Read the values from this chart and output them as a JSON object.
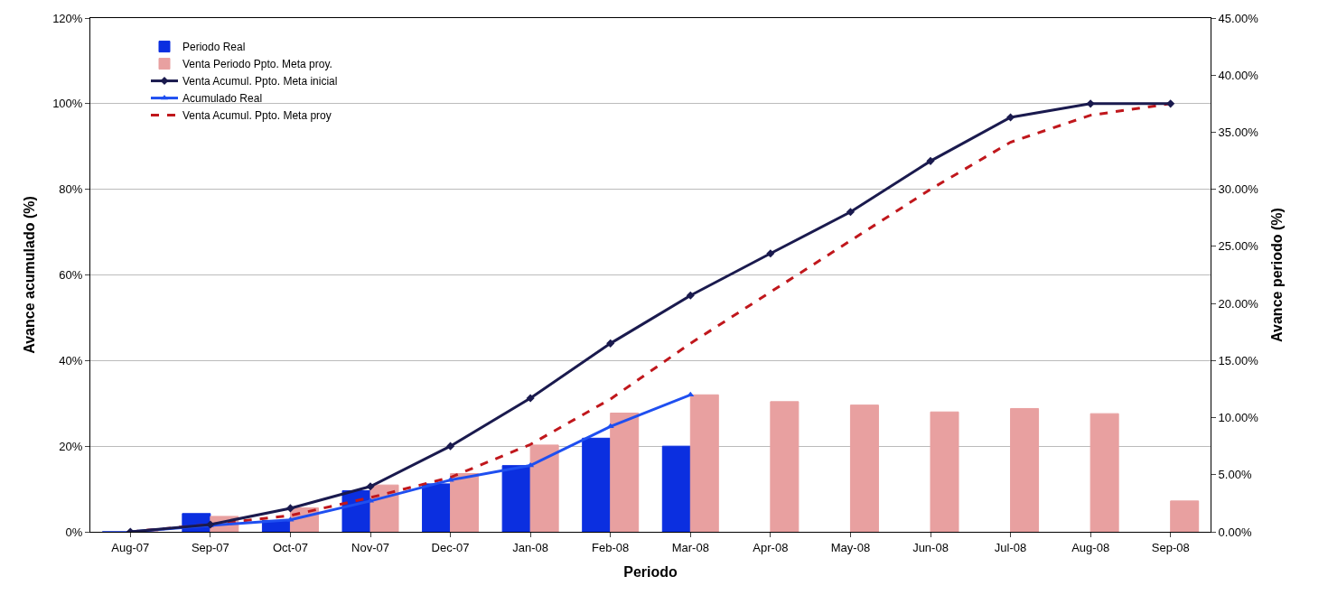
{
  "chart_data": {
    "type": "bar",
    "xlabel": "Periodo",
    "ylabel": "Avance acumulado (%)",
    "y2label": "Avance periodo (%)",
    "categories": [
      "Aug-07",
      "Sep-07",
      "Oct-07",
      "Nov-07",
      "Dec-07",
      "Jan-08",
      "Feb-08",
      "Mar-08",
      "Apr-08",
      "May-08",
      "Jun-08",
      "Jul-08",
      "Aug-08",
      "Sep-08"
    ],
    "series": [
      {
        "name": "Periodo Real",
        "type": "bar",
        "axis": "y2",
        "color": "#0b2fe0",
        "values": [
          0,
          1.6,
          1.0,
          3.6,
          4.2,
          5.8,
          8.2,
          7.5,
          null,
          null,
          null,
          null,
          null,
          null
        ]
      },
      {
        "name": "Venta Periodo Ppto. Meta proy.",
        "type": "bar",
        "axis": "y2",
        "color": "#e8a0a0",
        "values": [
          0,
          1.35,
          2.1,
          4.1,
          5.1,
          7.6,
          10.4,
          12.0,
          11.4,
          11.1,
          10.5,
          10.8,
          10.35,
          2.7
        ]
      },
      {
        "name": "Venta Acumul. Ppto. Meta inicial",
        "type": "line",
        "color": "#1a1a4e",
        "marker": "diamond",
        "line_style": "solid",
        "values": [
          0,
          1.7,
          5.5,
          10.6,
          20,
          31.2,
          44,
          55.2,
          65,
          74.7,
          86.6,
          96.8,
          100,
          100
        ]
      },
      {
        "name": "Acumulado Real",
        "type": "line",
        "color": "#1f4ff0",
        "marker": "triangle",
        "line_style": "solid",
        "values": [
          0,
          1.5,
          2.8,
          7.2,
          12.1,
          15.5,
          24.6,
          32,
          null,
          null,
          null,
          null,
          null,
          null
        ]
      },
      {
        "name": "Venta Acumul. Ppto. Meta proy",
        "type": "line",
        "color": "#c0171c",
        "marker": "none",
        "line_style": "dashed",
        "values": [
          0,
          1.7,
          3.8,
          8,
          12.7,
          20.4,
          31,
          44,
          56,
          68,
          80,
          91,
          97.3,
          100
        ]
      }
    ],
    "ylim": [
      0,
      120
    ],
    "yticks": [
      {
        "value": 0,
        "label": "0%"
      },
      {
        "value": 20,
        "label": "20%"
      },
      {
        "value": 40,
        "label": "40%"
      },
      {
        "value": 60,
        "label": "60%"
      },
      {
        "value": 80,
        "label": "80%"
      },
      {
        "value": 100,
        "label": "100%"
      },
      {
        "value": 120,
        "label": "120%"
      }
    ],
    "y2lim": [
      0,
      45
    ],
    "y2ticks": [
      {
        "value": 0,
        "label": "0.00%"
      },
      {
        "value": 5,
        "label": "5.00%"
      },
      {
        "value": 10,
        "label": "10.00%"
      },
      {
        "value": 15,
        "label": "15.00%"
      },
      {
        "value": 20,
        "label": "20.00%"
      },
      {
        "value": 25,
        "label": "25.00%"
      },
      {
        "value": 30,
        "label": "30.00%"
      },
      {
        "value": 35,
        "label": "35.00%"
      },
      {
        "value": 40,
        "label": "40.00%"
      },
      {
        "value": 45,
        "label": "45.00%"
      }
    ],
    "grid": "y",
    "legend": "top left"
  }
}
